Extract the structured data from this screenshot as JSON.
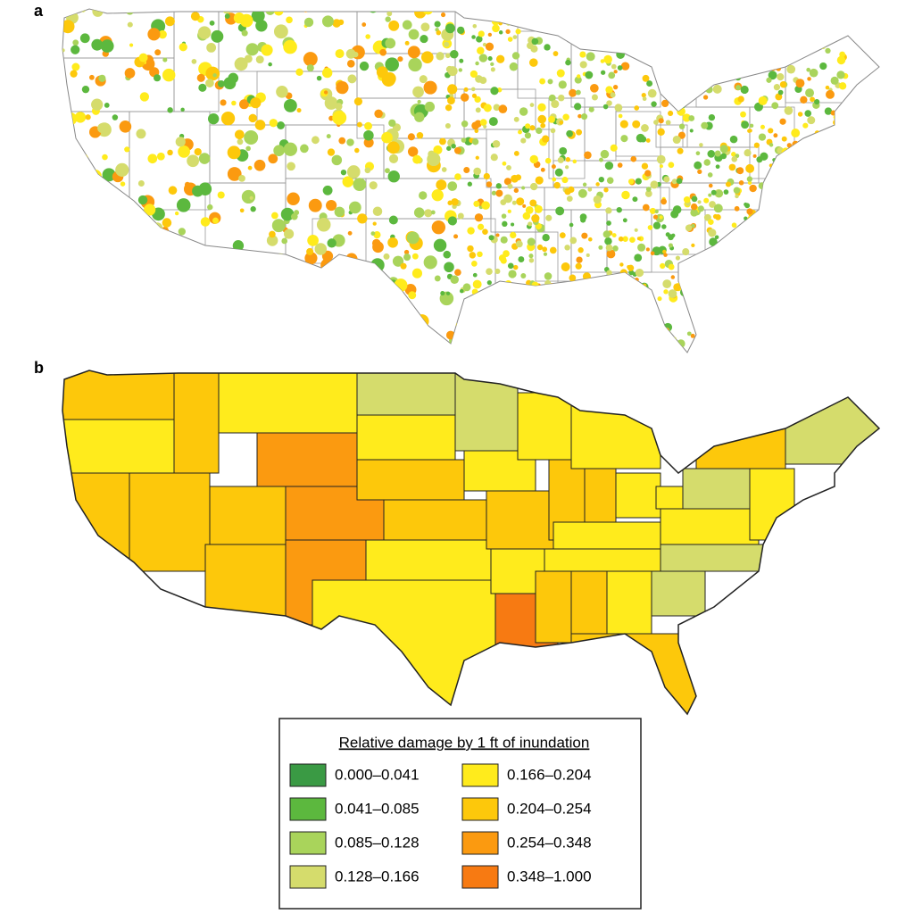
{
  "panels": {
    "a": "a",
    "b": "b"
  },
  "legend": {
    "title": "Relative damage by 1 ft of inundation",
    "items": [
      {
        "label": "0.000–0.041",
        "color": "#3a9a44"
      },
      {
        "label": "0.041–0.085",
        "color": "#5cb83e"
      },
      {
        "label": "0.085–0.128",
        "color": "#a9d45b"
      },
      {
        "label": "0.128–0.166",
        "color": "#d5dc6c"
      },
      {
        "label": "0.166–0.204",
        "color": "#ffeb1c"
      },
      {
        "label": "0.204–0.254",
        "color": "#fdc80b"
      },
      {
        "label": "0.254–0.348",
        "color": "#fb9a10"
      },
      {
        "label": "0.348–1.000",
        "color": "#f77a12"
      }
    ]
  }
}
